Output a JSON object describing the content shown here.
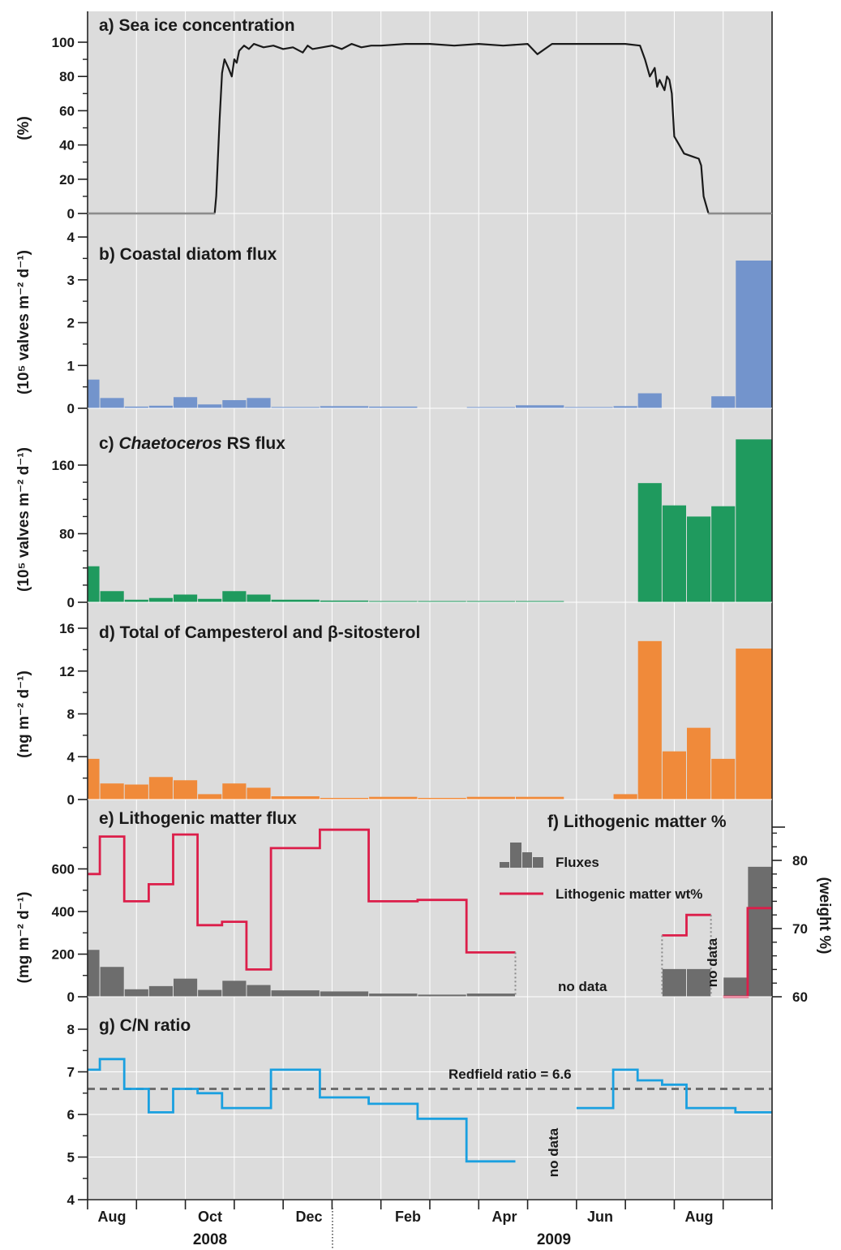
{
  "colors": {
    "panel_bg": "#dcdcdc",
    "grid": "#ffffff",
    "ice": "#1a1a1a",
    "diatom": "#7394cc",
    "chaeto": "#1f9a5e",
    "sterol": "#f08a3a",
    "litho_flux": "#6d6d6d",
    "litho_pct": "#dc1e4a",
    "cn": "#1aa0e0",
    "redfield": "#6e6e6e"
  },
  "chart_data": [
    {
      "id": "a",
      "type": "line",
      "title": "a) Sea ice concentration",
      "ylabel": "(%)",
      "ylim": [
        0,
        100
      ],
      "ytick_labels": [
        "0",
        "20",
        "40",
        "60",
        "80",
        "100"
      ],
      "x_unit": "months since 1 Aug 2008",
      "x": [
        0,
        1.4,
        2.6,
        2.63,
        2.7,
        2.75,
        2.8,
        2.88,
        2.95,
        3.0,
        3.05,
        3.1,
        3.2,
        3.3,
        3.4,
        3.6,
        3.8,
        4.0,
        4.2,
        4.4,
        4.5,
        4.6,
        4.8,
        5.0,
        5.2,
        5.4,
        5.6,
        5.8,
        6.0,
        6.5,
        7.0,
        7.5,
        8.0,
        8.5,
        9.0,
        9.2,
        9.5,
        10.0,
        10.5,
        11.0,
        11.3,
        11.4,
        11.5,
        11.6,
        11.65,
        11.7,
        11.8,
        11.85,
        11.9,
        11.95,
        12.0,
        12.1,
        12.2,
        12.4,
        12.5,
        12.55,
        12.6,
        12.7,
        12.8,
        14.0
      ],
      "values": [
        0,
        0,
        0,
        10,
        55,
        82,
        90,
        85,
        80,
        90,
        88,
        95,
        98,
        96,
        99,
        97,
        98,
        96,
        97,
        94,
        98,
        96,
        97,
        98,
        96,
        99,
        97,
        98,
        98,
        99,
        99,
        98,
        99,
        98,
        99,
        93,
        99,
        99,
        99,
        99,
        98,
        90,
        80,
        85,
        74,
        78,
        72,
        80,
        78,
        70,
        45,
        40,
        35,
        33,
        32,
        28,
        10,
        0,
        0,
        0
      ]
    },
    {
      "id": "b",
      "type": "bar",
      "title": "b) Coastal diatom flux",
      "ylabel": "(10⁵ valves m⁻² d⁻¹)",
      "ylim": [
        0,
        4
      ],
      "ytick_labels": [
        "0",
        "1",
        "2",
        "3",
        "4"
      ],
      "bins": [
        [
          0,
          0.25
        ],
        [
          0.25,
          0.75
        ],
        [
          0.75,
          1.25
        ],
        [
          1.25,
          1.75
        ],
        [
          1.75,
          2.25
        ],
        [
          2.25,
          2.75
        ],
        [
          2.75,
          3.25
        ],
        [
          3.25,
          3.75
        ],
        [
          3.75,
          4.75
        ],
        [
          4.75,
          5.75
        ],
        [
          5.75,
          6.75
        ],
        [
          6.75,
          7.75
        ],
        [
          7.75,
          8.75
        ],
        [
          8.75,
          9.75
        ],
        [
          9.75,
          10.75
        ],
        [
          10.75,
          11.25
        ],
        [
          11.25,
          11.75
        ],
        [
          12.75,
          13.25
        ],
        [
          13.25,
          14.0
        ]
      ],
      "values": [
        0.67,
        0.24,
        0.04,
        0.06,
        0.26,
        0.09,
        0.19,
        0.24,
        0.03,
        0.05,
        0.04,
        0.0,
        0.02,
        0.07,
        0.02,
        0.05,
        0.35,
        0.28,
        3.45
      ]
    },
    {
      "id": "c",
      "type": "bar",
      "title_prefix": "c) ",
      "title_italic": "Chaetoceros",
      "title_suffix": " RS flux",
      "ylabel": "(10⁵ valves m⁻² d⁻¹)",
      "ylim": [
        0,
        190
      ],
      "ytick_values": [
        0,
        80,
        160
      ],
      "ytick_labels": [
        "0",
        "80",
        "160"
      ],
      "bins": [
        [
          0,
          0.25
        ],
        [
          0.25,
          0.75
        ],
        [
          0.75,
          1.25
        ],
        [
          1.25,
          1.75
        ],
        [
          1.75,
          2.25
        ],
        [
          2.25,
          2.75
        ],
        [
          2.75,
          3.25
        ],
        [
          3.25,
          3.75
        ],
        [
          3.75,
          4.75
        ],
        [
          4.75,
          5.75
        ],
        [
          5.75,
          6.75
        ],
        [
          6.75,
          7.75
        ],
        [
          7.75,
          8.75
        ],
        [
          8.75,
          9.75
        ],
        [
          9.75,
          10.75
        ],
        [
          10.75,
          11.25
        ],
        [
          11.25,
          11.75
        ],
        [
          11.75,
          12.25
        ],
        [
          12.25,
          12.75
        ],
        [
          12.75,
          13.25
        ],
        [
          13.25,
          14.0
        ]
      ],
      "values": [
        42,
        13,
        3,
        5,
        9,
        4,
        13,
        9,
        3,
        2,
        1,
        0.5,
        0.5,
        0.5,
        0,
        0,
        139,
        113,
        100,
        112,
        190
      ]
    },
    {
      "id": "d",
      "type": "bar",
      "title": "d) Total of Campesterol and β-sitosterol",
      "ylabel": "(ng m⁻² d⁻¹)",
      "ylim": [
        0,
        16
      ],
      "ytick_values": [
        0,
        4,
        8,
        12,
        16
      ],
      "ytick_labels": [
        "0",
        "4",
        "8",
        "12",
        "16"
      ],
      "bins": [
        [
          0,
          0.25
        ],
        [
          0.25,
          0.75
        ],
        [
          0.75,
          1.25
        ],
        [
          1.25,
          1.75
        ],
        [
          1.75,
          2.25
        ],
        [
          2.25,
          2.75
        ],
        [
          2.75,
          3.25
        ],
        [
          3.25,
          3.75
        ],
        [
          3.75,
          4.75
        ],
        [
          4.75,
          5.75
        ],
        [
          5.75,
          6.75
        ],
        [
          6.75,
          7.75
        ],
        [
          7.75,
          8.75
        ],
        [
          8.75,
          9.75
        ],
        [
          9.75,
          10.75
        ],
        [
          10.75,
          11.25
        ],
        [
          11.25,
          11.75
        ],
        [
          11.75,
          12.25
        ],
        [
          12.25,
          12.75
        ],
        [
          12.75,
          13.25
        ],
        [
          13.25,
          14.0
        ]
      ],
      "values": [
        3.8,
        1.5,
        1.4,
        2.1,
        1.8,
        0.5,
        1.5,
        1.1,
        0.3,
        0.15,
        0.25,
        0.15,
        0.25,
        0.25,
        0,
        0.5,
        14.8,
        4.5,
        6.7,
        3.8,
        14.1
      ]
    },
    {
      "id": "e",
      "type": "bar",
      "title": "e) Lithogenic matter flux",
      "ylabel": "(mg m⁻² d⁻¹)",
      "ylim": [
        0,
        800
      ],
      "ytick_values": [
        0,
        200,
        400,
        600
      ],
      "ytick_labels": [
        "0",
        "200",
        "400",
        "600"
      ],
      "bins": [
        [
          0,
          0.25
        ],
        [
          0.25,
          0.75
        ],
        [
          0.75,
          1.25
        ],
        [
          1.25,
          1.75
        ],
        [
          1.75,
          2.25
        ],
        [
          2.25,
          2.75
        ],
        [
          2.75,
          3.25
        ],
        [
          3.25,
          3.75
        ],
        [
          3.75,
          4.75
        ],
        [
          4.75,
          5.75
        ],
        [
          5.75,
          6.75
        ],
        [
          6.75,
          7.75
        ],
        [
          7.75,
          8.75
        ],
        [
          11.75,
          12.25
        ],
        [
          12.25,
          12.75
        ],
        [
          13.0,
          13.5
        ],
        [
          13.5,
          14.0
        ]
      ],
      "values": [
        220,
        140,
        35,
        50,
        85,
        32,
        75,
        55,
        30,
        25,
        15,
        10,
        15,
        130,
        130,
        90,
        610
      ],
      "no_data_label": "no data"
    },
    {
      "id": "f",
      "type": "line",
      "title": "f) Lithogenic matter %",
      "ylabel": "(weight %)",
      "ylim": [
        60,
        85
      ],
      "ytick_values": [
        60,
        70,
        80
      ],
      "ytick_labels": [
        "60",
        "70",
        "80"
      ],
      "series": [
        {
          "name": "Lithogenic matter wt%",
          "segments": [
            {
              "x": [
                0,
                0.25,
                0.25,
                0.75,
                0.75,
                1.25,
                1.25,
                1.75,
                1.75,
                2.25,
                2.25,
                2.75,
                2.75,
                3.25,
                3.25,
                3.75,
                3.75,
                4.75,
                4.75,
                5.75,
                5.75,
                6.75,
                6.75,
                7.75,
                7.75,
                8.75
              ],
              "y": [
                78,
                78,
                83.5,
                83.5,
                74,
                74,
                76.5,
                76.5,
                83.8,
                83.8,
                70.5,
                70.5,
                71,
                71,
                64,
                64,
                81.8,
                81.8,
                84.5,
                84.5,
                74,
                74,
                74.2,
                74.2,
                66.5,
                66.5
              ]
            },
            {
              "x": [
                11.75,
                12.25,
                12.25,
                12.75
              ],
              "y": [
                69,
                69,
                72,
                72
              ]
            },
            {
              "x": [
                13.0,
                13.5,
                13.5,
                14.0
              ],
              "y": [
                60,
                60,
                73,
                73
              ]
            }
          ]
        }
      ],
      "legend": [
        {
          "label": "Fluxes",
          "kind": "bars"
        },
        {
          "label": "Lithogenic matter wt%",
          "kind": "line"
        }
      ],
      "no_data_label": "no data"
    },
    {
      "id": "g",
      "type": "line",
      "title": "g) C/N ratio",
      "ylim": [
        4,
        8
      ],
      "ytick_values": [
        4,
        5,
        6,
        7,
        8
      ],
      "ytick_labels": [
        "4",
        "5",
        "6",
        "7",
        "8"
      ],
      "series": [
        {
          "name": "C/N ratio",
          "segments": [
            {
              "x": [
                0,
                0.25,
                0.25,
                0.75,
                0.75,
                1.25,
                1.25,
                1.75,
                1.75,
                2.25,
                2.25,
                2.75,
                2.75,
                3.75,
                3.75,
                4.75,
                4.75,
                5.75,
                5.75,
                6.75,
                6.75,
                7.75,
                7.75,
                8.75
              ],
              "y": [
                7.05,
                7.05,
                7.3,
                7.3,
                6.6,
                6.6,
                6.05,
                6.05,
                6.6,
                6.6,
                6.5,
                6.5,
                6.15,
                6.15,
                7.05,
                7.05,
                6.4,
                6.4,
                6.25,
                6.25,
                5.9,
                5.9,
                4.9,
                4.9
              ]
            },
            {
              "x": [
                10.0,
                10.75,
                10.75,
                11.25,
                11.25,
                11.75,
                11.75,
                12.25,
                12.25,
                13.25,
                13.25,
                14.0
              ],
              "y": [
                6.15,
                6.15,
                7.05,
                7.05,
                6.8,
                6.8,
                6.7,
                6.7,
                6.15,
                6.15,
                6.05,
                6.05
              ]
            }
          ]
        }
      ],
      "reference_line": {
        "value": 6.6,
        "label": "Redfield ratio = 6.6"
      },
      "no_data_label": "no data"
    }
  ],
  "x_axis": {
    "months": [
      "Aug",
      "Oct",
      "Dec",
      "Feb",
      "Apr",
      "Jun",
      "Aug"
    ],
    "years": [
      "2008",
      "2009"
    ]
  }
}
